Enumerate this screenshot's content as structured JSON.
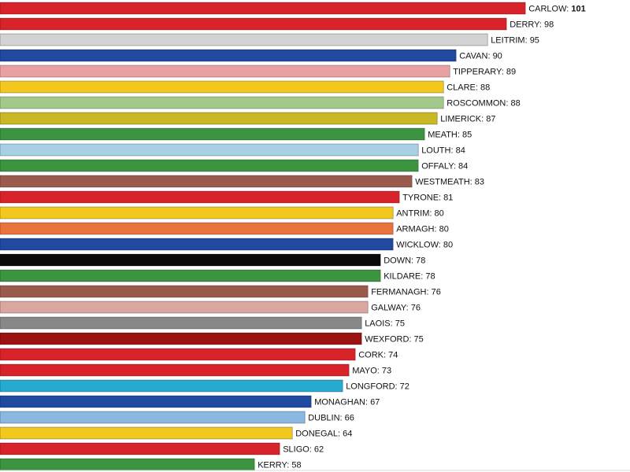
{
  "chart_data": {
    "type": "bar",
    "orientation": "horizontal",
    "title": "",
    "xlabel": "",
    "ylabel": "",
    "xlim": [
      17.6,
      100.75
    ],
    "grid": false,
    "legend": "none",
    "label_format": "{category}: {value}",
    "categories": [
      "CARLOW",
      "DERRY",
      "LEITRIM",
      "CAVAN",
      "TIPPERARY",
      "CLARE",
      "ROSCOMMON",
      "LIMERICK",
      "MEATH",
      "LOUTH",
      "OFFALY",
      "WESTMEATH",
      "TYRONE",
      "ANTRIM",
      "ARMAGH",
      "WICKLOW",
      "DOWN",
      "KILDARE",
      "FERMANAGH",
      "GALWAY",
      "LAOIS",
      "WEXFORD",
      "CORK",
      "MAYO",
      "LONGFORD",
      "MONAGHAN",
      "DUBLIN",
      "DONEGAL",
      "SLIGO",
      "KERRY"
    ],
    "values": [
      101,
      98,
      95,
      90,
      89,
      88,
      88,
      87,
      85,
      84,
      84,
      83,
      81,
      80,
      80,
      80,
      78,
      78,
      76,
      76,
      75,
      75,
      74,
      73,
      72,
      67,
      66,
      64,
      62,
      58
    ],
    "colors": [
      "#d9232b",
      "#d9232b",
      "#d3d3d3",
      "#1f4aa0",
      "#e9a0a3",
      "#f2c81e",
      "#a3c98a",
      "#c9b824",
      "#3c9440",
      "#a8d0e3",
      "#3c9440",
      "#9a5a4c",
      "#d9232b",
      "#f2c81e",
      "#e8743b",
      "#1f4aa0",
      "#0a0a0a",
      "#3c9440",
      "#9a5a4c",
      "#d9a6a0",
      "#888888",
      "#9b1212",
      "#d9232b",
      "#d9232b",
      "#27aad2",
      "#1f4aa0",
      "#8ab8e0",
      "#f2c81e",
      "#d9232b",
      "#3c9440"
    ],
    "label_texts": [
      "CARLOW: 101",
      "DERRY: 98",
      "LEITRIM: 95",
      "CAVAN: 90",
      "TIPPERARY: 89",
      "CLARE: 88",
      "ROSCOMMON: 88",
      "LIMERICK: 87",
      "MEATH: 85",
      "LOUTH: 84",
      "OFFALY: 84",
      "WESTMEATH: 83",
      "TYRONE: 81",
      "ANTRIM: 80",
      "ARMAGH: 80",
      "WICKLOW: 80",
      "DOWN: 78",
      "KILDARE: 78",
      "FERMANAGH: 76",
      "GALWAY: 76",
      "LAOIS: 75",
      "WEXFORD: 75",
      "CORK: 74",
      "MAYO: 73",
      "LONGFORD: 72",
      "MONAGHAN: 67",
      "DUBLIN: 66",
      "DONEGAL: 64",
      "SLIGO: 62",
      "KERRY: 58"
    ]
  }
}
